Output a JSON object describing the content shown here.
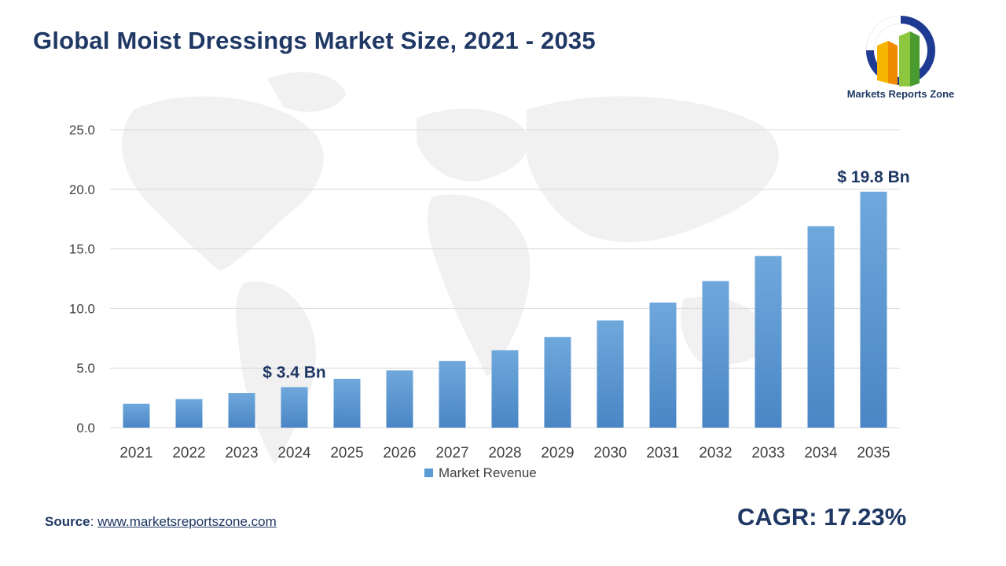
{
  "header": {
    "title": "Global Moist Dressings Market Size, 2021 - 2035"
  },
  "logo": {
    "text": "Markets Reports Zone",
    "icon": "bar-logo-icon"
  },
  "footer": {
    "source_label": "Source",
    "source_sep": ": ",
    "source_link": "www.marketsreportszone.com",
    "cagr": "CAGR: 17.23%"
  },
  "colors": {
    "bar": "#5b9bd5",
    "text_dark": "#1f3864",
    "grid": "#d9d9d9",
    "axis_text": "#404040"
  },
  "chart_data": {
    "type": "bar",
    "categories": [
      "2021",
      "2022",
      "2023",
      "2024",
      "2025",
      "2026",
      "2027",
      "2028",
      "2029",
      "2030",
      "2031",
      "2032",
      "2033",
      "2034",
      "2035"
    ],
    "series": [
      {
        "name": "Market Revenue",
        "values": [
          2.0,
          2.4,
          2.9,
          3.4,
          4.1,
          4.8,
          5.6,
          6.5,
          7.6,
          9.0,
          10.5,
          12.3,
          14.4,
          16.9,
          19.8
        ]
      }
    ],
    "yticks": [
      "0.0",
      "5.0",
      "10.0",
      "15.0",
      "20.0",
      "25.0"
    ],
    "ylim": [
      0,
      25
    ],
    "grid": true,
    "legend_position": "bottom",
    "annotations": [
      {
        "category": "2024",
        "text": "$ 3.4 Bn"
      },
      {
        "category": "2035",
        "text": "$ 19.8 Bn"
      }
    ]
  }
}
